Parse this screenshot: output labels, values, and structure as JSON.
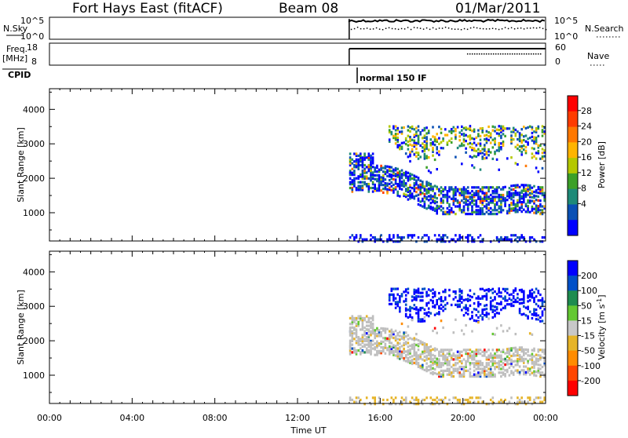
{
  "header": {
    "station": "Fort Hays East (fitACF)",
    "beam": "Beam 08",
    "date": "01/Mar/2011"
  },
  "strips": {
    "nsky_label": "N.Sky",
    "nsky_ticks": [
      "10^5",
      "10^0"
    ],
    "nsearch_label": "N.Search",
    "nsearch_ticks": [
      "10^5",
      "10^0"
    ],
    "freq_label": "Freq.",
    "freq_unit": "[MHz]",
    "freq_ticks": [
      "18",
      "8"
    ],
    "nave_label": "Nave",
    "nave_ticks": [
      "60",
      "0"
    ],
    "cpid_label": "CPID",
    "cpid_value": "normal 150 IF"
  },
  "colors": {
    "power": [
      "#0000ff",
      "#0a50b4",
      "#1e8a78",
      "#3ca028",
      "#b4c800",
      "#ffb400",
      "#ff7800",
      "#ff3c00",
      "#ff0000"
    ],
    "velocity": [
      "#0000ff",
      "#0050c8",
      "#1e8c50",
      "#64c832",
      "#c8c8c8",
      "#e6b428",
      "#ff8c00",
      "#ff4600",
      "#ff0000"
    ],
    "ground": "#bebebe"
  },
  "chart_data": [
    {
      "type": "heatmap",
      "quantity": "power",
      "ylabel": "Slant Range [km]",
      "y_ticks": [
        "4000",
        "3000",
        "2000",
        "1000"
      ],
      "ylim": [
        180,
        4600
      ],
      "xlim": [
        0,
        24
      ],
      "colorbar_label": "Power [dB]",
      "colorbar_ticks": [
        "28",
        "24",
        "20",
        "16",
        "12",
        "8",
        "4"
      ],
      "colorbar_range": [
        0,
        30
      ],
      "data_start_hour": 14.5
    },
    {
      "type": "heatmap",
      "quantity": "velocity",
      "ylabel": "Slant Range [km]",
      "y_ticks": [
        "4000",
        "3000",
        "2000",
        "1000"
      ],
      "ylim": [
        180,
        4600
      ],
      "xlim": [
        0,
        24
      ],
      "colorbar_label": "Velocity [m s",
      "colorbar_label_sup": "-1",
      "colorbar_label_end": "]",
      "colorbar_ticks": [
        "200",
        "100",
        "50",
        "15",
        "-15",
        "-50",
        "-100",
        "-200"
      ],
      "data_start_hour": 14.5
    }
  ],
  "x_axis": {
    "ticks": [
      "00:00",
      "04:00",
      "08:00",
      "12:00",
      "16:00",
      "20:00",
      "00:00"
    ],
    "label": "Time UT"
  }
}
